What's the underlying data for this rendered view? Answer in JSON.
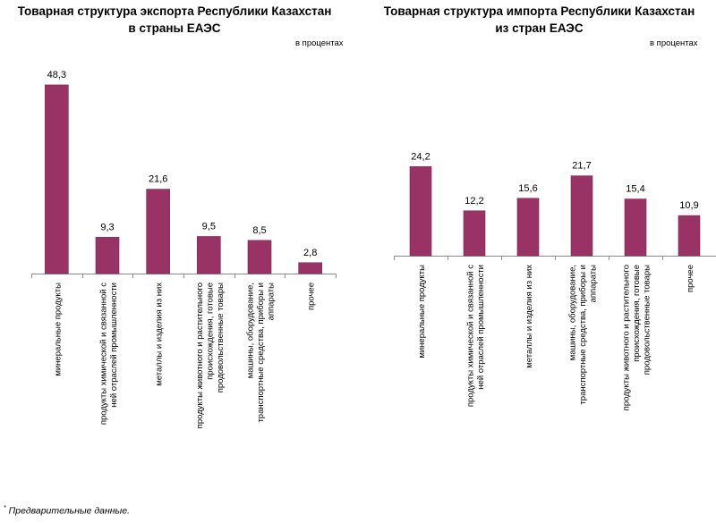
{
  "colors": {
    "bar": "#993366",
    "bar_edge": "#7a2851",
    "axis": "#8c8c8c"
  },
  "footnote": {
    "mark": "*",
    "text": " Предварительные данные."
  },
  "chart_data": [
    {
      "type": "bar",
      "title_lines": [
        "Товарная структура экспорта Республики Казахстан",
        "в страны ЕАЭС"
      ],
      "unit": "в процентах",
      "categories": [
        [
          "минеральные продукты"
        ],
        [
          "продукты химической и связанной с",
          "ней отраслей промышленности"
        ],
        [
          "металлы и изделия из них"
        ],
        [
          "продукты животного и растительного",
          "происхождения, готовые",
          "продовольственные товары"
        ],
        [
          "машины, оборудование,",
          "транспортные средства, приборы и",
          "аппараты"
        ],
        [
          "прочее"
        ]
      ],
      "values": [
        48.3,
        9.3,
        21.6,
        9.5,
        8.5,
        2.8
      ],
      "data_labels": [
        "48,3",
        "9,3",
        "21,6",
        "9,5",
        "8,5",
        "2,8"
      ],
      "ylim": [
        0,
        50
      ],
      "grid": false,
      "legend": "none"
    },
    {
      "type": "bar",
      "title_lines": [
        "Товарная структура импорта Республики Казахстан",
        "из стран ЕАЭС"
      ],
      "unit": "в процентах",
      "categories": [
        [
          "минеральные продукты"
        ],
        [
          "продукты химической и связанной с",
          "ней отраслей промышленности"
        ],
        [
          "металлы и изделия из них"
        ],
        [
          "машины, оборудование,",
          "транспортные средства, приборы и",
          "аппараты"
        ],
        [
          "продукты животного и растительного",
          "происхождения, готовые",
          "продовольственные товары"
        ],
        [
          "прочее"
        ]
      ],
      "values": [
        24.2,
        12.2,
        15.6,
        21.7,
        15.4,
        10.9
      ],
      "data_labels": [
        "24,2",
        "12,2",
        "15,6",
        "21,7",
        "15,4",
        "10,9"
      ],
      "ylim": [
        0,
        25.5
      ],
      "grid": false,
      "legend": "none"
    }
  ]
}
